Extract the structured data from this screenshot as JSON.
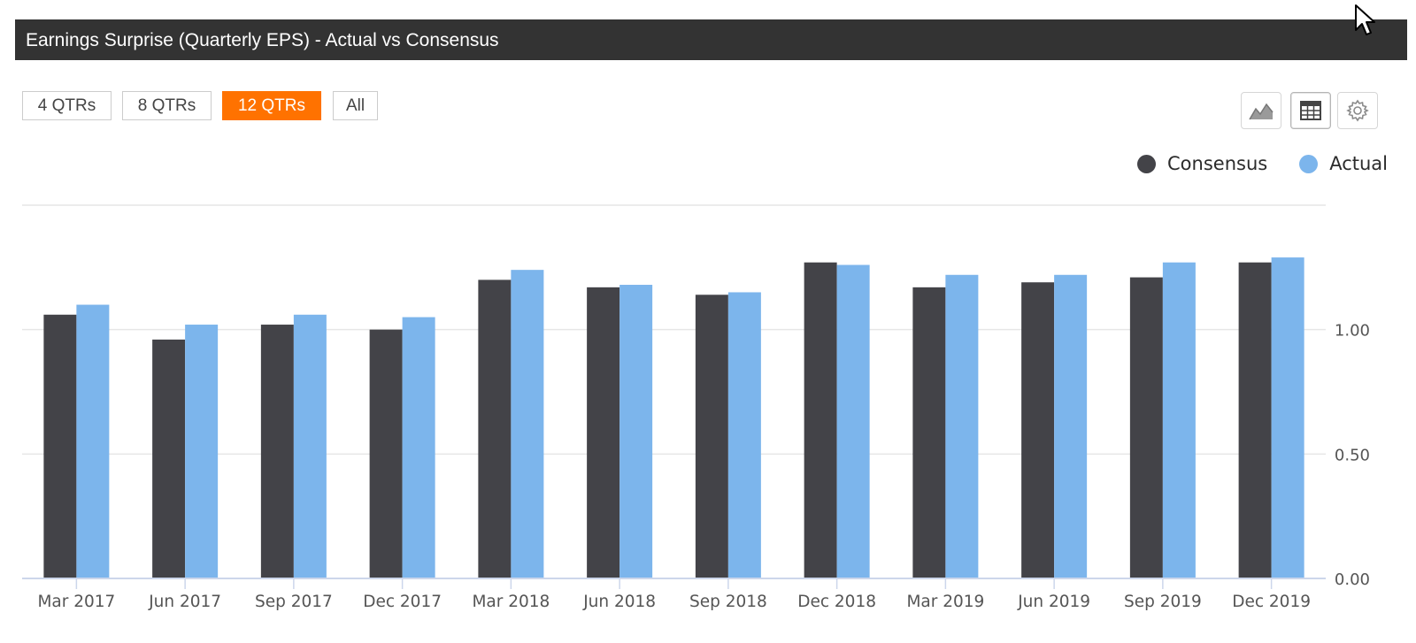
{
  "header": {
    "title": "Earnings Surprise (Quarterly EPS) - Actual vs Consensus"
  },
  "range_buttons": [
    {
      "label": "4 QTRs",
      "active": false
    },
    {
      "label": "8 QTRs",
      "active": false
    },
    {
      "label": "12 QTRs",
      "active": true
    },
    {
      "label": "All",
      "active": false
    }
  ],
  "toolbar": {
    "icons": [
      "area-chart-icon",
      "table-icon",
      "gear-icon"
    ],
    "selected": "table-icon"
  },
  "colors": {
    "consensus": "#434348",
    "actual": "#7cb5ec",
    "active_button": "#ff7200",
    "header_bg": "#333333"
  },
  "chart_data": {
    "type": "bar",
    "categories": [
      "Mar 2017",
      "Jun 2017",
      "Sep 2017",
      "Dec 2017",
      "Mar 2018",
      "Jun 2018",
      "Sep 2018",
      "Dec 2018",
      "Mar 2019",
      "Jun 2019",
      "Sep 2019",
      "Dec 2019"
    ],
    "series": [
      {
        "name": "Consensus",
        "color": "#434348",
        "values": [
          1.06,
          0.96,
          1.02,
          1.0,
          1.2,
          1.17,
          1.14,
          1.27,
          1.17,
          1.19,
          1.21,
          1.27
        ]
      },
      {
        "name": "Actual",
        "color": "#7cb5ec",
        "values": [
          1.1,
          1.02,
          1.06,
          1.05,
          1.24,
          1.18,
          1.15,
          1.26,
          1.22,
          1.22,
          1.27,
          1.29
        ]
      }
    ],
    "y_ticks": [
      "0.00",
      "0.50",
      "1.00"
    ],
    "ylim": [
      0,
      1.5
    ],
    "y_axis_position": "right",
    "grid": true,
    "legend_position": "top-right"
  }
}
